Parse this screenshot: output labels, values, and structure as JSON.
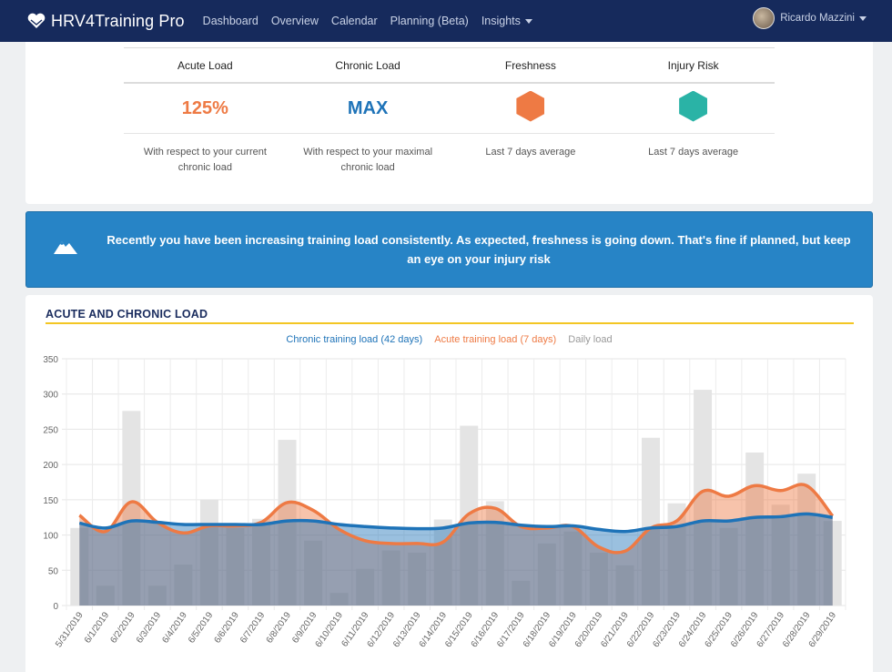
{
  "nav": {
    "brand": "HRV4Training Pro",
    "links": [
      "Dashboard",
      "Overview",
      "Calendar",
      "Planning (Beta)",
      "Insights"
    ],
    "user_name": "Ricardo Mazzini"
  },
  "stats": {
    "headers": [
      "Acute Load",
      "Chronic Load",
      "Freshness",
      "Injury Risk"
    ],
    "acute_value": "125%",
    "chronic_value": "MAX",
    "freshness_color": "#ee7a44",
    "injury_color": "#2ab3a6",
    "acute_value_color": "#ee7a44",
    "chronic_value_color": "#1e73b8",
    "descriptions": [
      "With respect to your current chronic load",
      "With respect to your maximal chronic load",
      "Last 7 days average",
      "Last 7 days average"
    ]
  },
  "alert": {
    "icon": "mountain-icon",
    "text": "Recently you have been increasing training load consistently. As expected, freshness is going down. That's fine if planned, but keep an eye on your injury risk"
  },
  "chart_section": {
    "title": "ACUTE AND CHRONIC LOAD",
    "legend": [
      {
        "label": "Chronic training load (42 days)",
        "color": "#1e73b8"
      },
      {
        "label": "Acute training load (7 days)",
        "color": "#ee7a44"
      },
      {
        "label": "Daily load",
        "color": "#999999"
      }
    ]
  },
  "chart_data": {
    "type": "bar",
    "categories": [
      "5/31/2019",
      "6/1/2019",
      "6/2/2019",
      "6/3/2019",
      "6/4/2019",
      "6/5/2019",
      "6/6/2019",
      "6/7/2019",
      "6/8/2019",
      "6/9/2019",
      "6/10/2019",
      "6/11/2019",
      "6/12/2019",
      "6/13/2019",
      "6/14/2019",
      "6/15/2019",
      "6/16/2019",
      "6/17/2019",
      "6/18/2019",
      "6/19/2019",
      "6/20/2019",
      "6/21/2019",
      "6/22/2019",
      "6/23/2019",
      "6/24/2019",
      "6/25/2019",
      "6/26/2019",
      "6/27/2019",
      "6/28/2019",
      "6/29/2019"
    ],
    "ylim": [
      0,
      350
    ],
    "yticks": [
      0,
      50,
      100,
      150,
      200,
      250,
      300,
      350
    ],
    "series": [
      {
        "name": "Daily load",
        "type": "bar",
        "values": [
          110,
          28,
          276,
          28,
          58,
          150,
          110,
          123,
          235,
          92,
          18,
          52,
          78,
          75,
          122,
          255,
          148,
          35,
          88,
          105,
          75,
          57,
          238,
          145,
          306,
          110,
          217,
          143,
          187,
          120
        ]
      },
      {
        "name": "Acute training load (7 days)",
        "type": "area",
        "values": [
          128,
          105,
          147,
          118,
          103,
          113,
          113,
          118,
          146,
          135,
          108,
          92,
          88,
          88,
          90,
          130,
          138,
          112,
          110,
          112,
          83,
          77,
          110,
          120,
          162,
          155,
          170,
          163,
          170,
          127
        ]
      },
      {
        "name": "Chronic training load (42 days)",
        "type": "area",
        "values": [
          117,
          110,
          120,
          118,
          115,
          115,
          115,
          115,
          120,
          120,
          115,
          112,
          110,
          109,
          110,
          117,
          118,
          114,
          112,
          113,
          108,
          105,
          110,
          112,
          120,
          120,
          125,
          126,
          130,
          125
        ]
      }
    ]
  }
}
